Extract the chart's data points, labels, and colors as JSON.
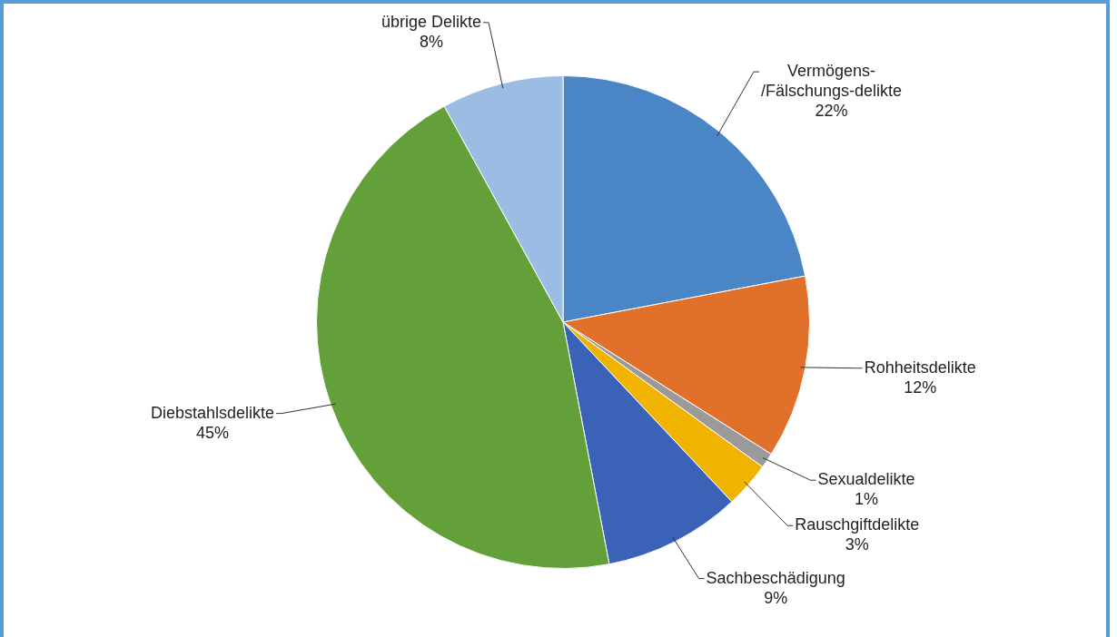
{
  "chart_data": {
    "type": "pie",
    "categories": [
      "Vermögens-/Fälschungs-delikte",
      "Rohheitsdelikte",
      "Sexualdelikte",
      "Rauschgiftdelikte",
      "Sachbeschädigung",
      "Diebstahlsdelikte",
      "übrige Delikte"
    ],
    "values": [
      22,
      12,
      1,
      3,
      9,
      45,
      8
    ],
    "colors": [
      "#4a86c5",
      "#e0702a",
      "#9a9a9a",
      "#f0b400",
      "#3a63b8",
      "#63a03a",
      "#9cbde3"
    ],
    "value_labels": [
      "22%",
      "12%",
      "1%",
      "3%",
      "9%",
      "45%",
      "8%"
    ],
    "legend": false
  }
}
